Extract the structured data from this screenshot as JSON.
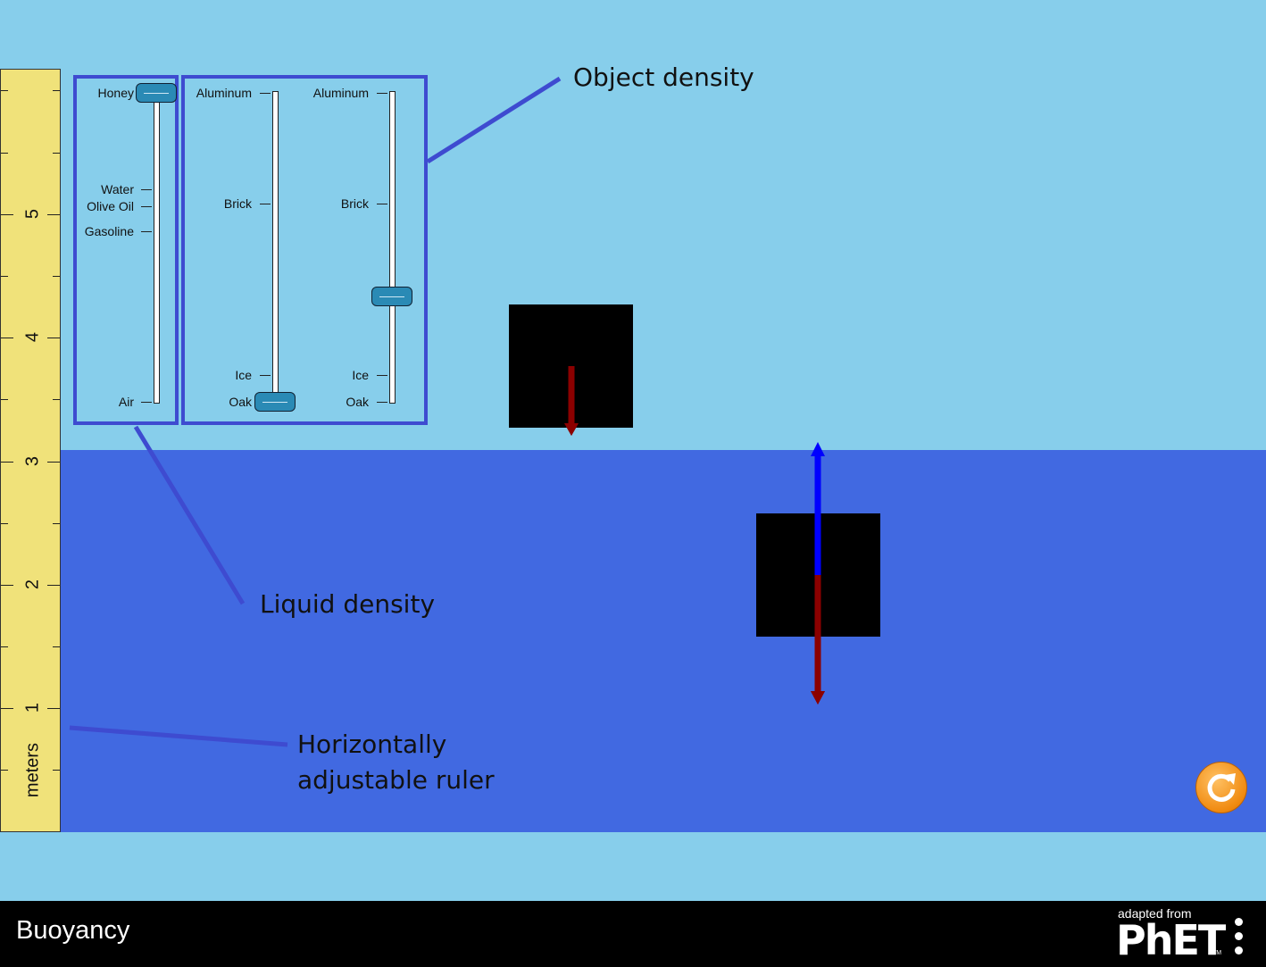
{
  "app": {
    "title": "Buoyancy"
  },
  "branding": {
    "adapted_from": "adapted from",
    "logo_text": "PhET",
    "trademark": "TM"
  },
  "colors": {
    "sky": "#87ceeb",
    "liquid": "#4169e1",
    "ruler": "#f0e27a",
    "panel_border": "#3e4bd0",
    "slider_thumb": "#2a8ab5",
    "gravity_arrow": "#8b0000",
    "buoyancy_arrow": "#0000ff",
    "reset_button": "#f08a10"
  },
  "ruler": {
    "unit": "meters",
    "labels": [
      "5",
      "4",
      "3",
      "2",
      "1"
    ]
  },
  "liquid_density_slider": {
    "labels": {
      "honey": "Honey",
      "water": "Water",
      "olive_oil": "Olive Oil",
      "gasoline": "Gasoline",
      "air": "Air"
    },
    "selected": "Honey"
  },
  "object_density_sliders": [
    {
      "labels": {
        "aluminum": "Aluminum",
        "brick": "Brick",
        "ice": "Ice",
        "oak": "Oak"
      },
      "selected": "Oak"
    },
    {
      "labels": {
        "aluminum": "Aluminum",
        "brick": "Brick",
        "ice": "Ice",
        "oak": "Oak"
      }
    }
  ],
  "callouts": {
    "object_density": "Object density",
    "liquid_density": "Liquid density",
    "ruler_line1": "Horizontally",
    "ruler_line2": "adjustable ruler"
  },
  "icons": {
    "reset": "reset-icon",
    "menu": "kebab-menu-icon"
  }
}
